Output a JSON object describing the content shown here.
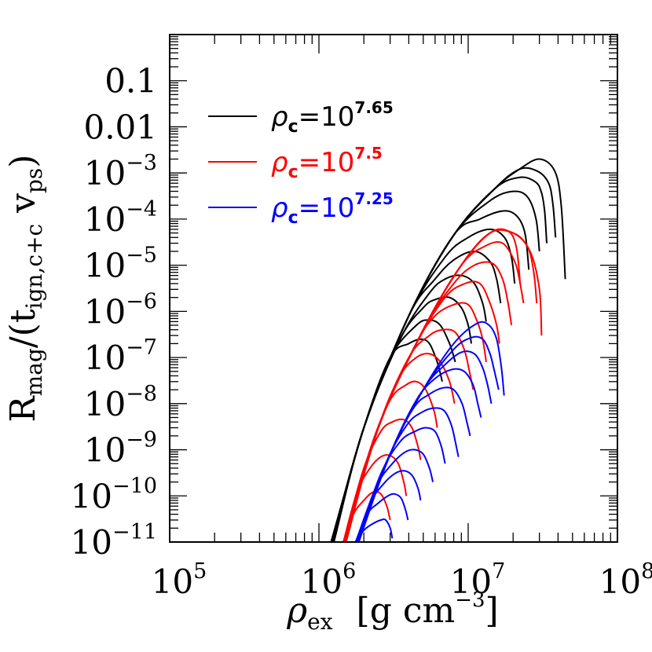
{
  "chart_data": {
    "type": "line",
    "x_scale": "log",
    "y_scale": "log",
    "xlim": [
      100000,
      100000000
    ],
    "ylim": [
      1e-11,
      1
    ],
    "x_tick_labels": [
      {
        "value": 100000,
        "base": "10",
        "exp": "5"
      },
      {
        "value": 1000000,
        "base": "10",
        "exp": "6"
      },
      {
        "value": 10000000,
        "base": "10",
        "exp": "7"
      },
      {
        "value": 100000000,
        "base": "10",
        "exp": "8"
      }
    ],
    "y_tick_labels": [
      {
        "value": 0.1,
        "text": "0.1"
      },
      {
        "value": 0.01,
        "text": "0.01"
      },
      {
        "value": 0.001,
        "base": "10",
        "exp": "−3"
      },
      {
        "value": 0.0001,
        "base": "10",
        "exp": "−4"
      },
      {
        "value": 1e-05,
        "base": "10",
        "exp": "−5"
      },
      {
        "value": 1e-06,
        "base": "10",
        "exp": "−6"
      },
      {
        "value": 1e-07,
        "base": "10",
        "exp": "−7"
      },
      {
        "value": 1e-08,
        "base": "10",
        "exp": "−8"
      },
      {
        "value": 1e-09,
        "base": "10",
        "exp": "−9"
      },
      {
        "value": 1e-10,
        "base": "10",
        "exp": "−10"
      },
      {
        "value": 1e-11,
        "base": "10",
        "exp": "−11"
      }
    ],
    "xlabel": {
      "symbol": "ρ",
      "sub": "ex",
      "unit_open": "[g cm",
      "unit_exp": "−3",
      "unit_close": "]"
    },
    "ylabel": {
      "main": "R",
      "sub1": "mag",
      "mid": "/(t",
      "sub2": "ign,c+c",
      "gap": " v",
      "sub3": "ps",
      "close": ")"
    },
    "legend": {
      "position": "top-left",
      "entries": [
        {
          "symbol": "ρ",
          "sub": "c",
          "eq": "=10",
          "exp": "7.65",
          "color": "#000000"
        },
        {
          "symbol": "ρ",
          "sub": "c",
          "eq": "=10",
          "exp": "7.5",
          "color": "#ff0000"
        },
        {
          "symbol": "ρ",
          "sub": "c",
          "eq": "=10",
          "exp": "7.25",
          "color": "#0000ff"
        }
      ]
    },
    "series": [
      {
        "color": "#000000",
        "curves": [
          {
            "x": [
              1240000,
              2000000,
              4000000,
              8000000,
              15000000,
              22000000,
              28000000,
              30800000,
              32500000,
              33600000
            ],
            "y": [
              1e-11,
              3e-09,
              8e-07,
              4.5e-05,
              0.00045,
              0.0008,
              0.00065,
              0.0004,
              0.00015,
              3e-05
            ]
          },
          {
            "x": [
              1250000,
              2000000,
              4000000,
              8000000,
              15000000,
              22000000,
              29000000,
              34600000,
              37000000,
              38500000
            ],
            "y": [
              1e-11,
              3e-09,
              8e-07,
              4.5e-05,
              0.00045,
              0.0012,
              0.0011,
              0.0006,
              0.0002,
              4e-05
            ]
          },
          {
            "x": [
              1260000,
              2000000,
              4000000,
              8000000,
              15000000,
              22000000,
              30000000,
              38000000,
              42000000,
              44700000
            ],
            "y": [
              1e-11,
              3e-09,
              8e-07,
              4.5e-05,
              0.00045,
              0.0012,
              0.002,
              0.0011,
              0.0002,
              5e-06
            ]
          },
          {
            "x": [
              1245000,
              2000000,
              4000000,
              8000000,
              14000000,
              20000000,
              25000000,
              28500000,
              30000000
            ],
            "y": [
              1e-11,
              3e-09,
              8e-07,
              4.5e-05,
              0.00025,
              0.0004,
              0.0003,
              0.0001,
              2e-05
            ]
          },
          {
            "x": [
              1235000,
              2000000,
              4000000,
              8000000,
              12000000,
              17000000,
              21000000,
              24000000,
              25500000
            ],
            "y": [
              1e-11,
              3e-09,
              8e-07,
              4.5e-05,
              0.0001,
              0.00015,
              0.00012,
              5e-05,
              8e-06
            ]
          },
          {
            "x": [
              1230000,
              2000000,
              4000000,
              7000000,
              10000000,
              14000000,
              17500000,
              19500000,
              20500000
            ],
            "y": [
              1e-11,
              3e-09,
              8e-07,
              1.5e-05,
              4e-05,
              6e-05,
              4e-05,
              1.5e-05,
              4e-06
            ]
          },
          {
            "x": [
              1225000,
              2000000,
              4000000,
              6000000,
              8000000,
              11000000,
              14000000,
              15500000,
              16500000
            ],
            "y": [
              1e-11,
              3e-09,
              8e-07,
              5e-06,
              1.3e-05,
              2e-05,
              1.2e-05,
              5e-06,
              1.5e-06
            ]
          },
          {
            "x": [
              1220000,
              2000000,
              3500000,
              5500000,
              7000000,
              9000000,
              11000000,
              12500000,
              13200000
            ],
            "y": [
              1e-11,
              3e-09,
              2.5e-07,
              2.5e-06,
              5e-06,
              6e-06,
              4e-06,
              1.5e-06,
              6e-07
            ]
          },
          {
            "x": [
              1215000,
              2000000,
              3500000,
              5000000,
              6000000,
              7500000,
              9000000,
              10000000,
              10500000
            ],
            "y": [
              1e-11,
              3e-09,
              2.5e-07,
              1.2e-06,
              1.8e-06,
              2e-06,
              1.2e-06,
              5e-07,
              2e-07
            ]
          },
          {
            "x": [
              1210000,
              2000000,
              3000000,
              4500000,
              5500000,
              6500000,
              7500000,
              8200000
            ],
            "y": [
              1e-11,
              3e-09,
              1e-07,
              5e-07,
              6.5e-07,
              5e-07,
              2e-07,
              8e-08
            ]
          },
          {
            "x": [
              1205000,
              2000000,
              3000000,
              4000000,
              4800000,
              5500000,
              6200000,
              6700000
            ],
            "y": [
              1e-11,
              3e-09,
              1e-07,
              2e-07,
              2.5e-07,
              2e-07,
              8e-08,
              3e-08
            ]
          }
        ]
      },
      {
        "color": "#ff0000",
        "curves": [
          {
            "x": [
              1500000,
              2500000,
              5000000,
              9000000,
              14000000,
              18500000,
              21000000,
              22300000
            ],
            "y": [
              1e-11,
              3e-09,
              4e-07,
              1e-05,
              5e-05,
              5.5e-05,
              2.5e-05,
              4e-06
            ]
          },
          {
            "x": [
              1510000,
              2500000,
              5000000,
              9000000,
              14000000,
              20000000,
              25000000,
              27500000,
              28800000
            ],
            "y": [
              1e-11,
              3e-09,
              4e-07,
              1e-05,
              5e-05,
              5e-05,
              2.5e-05,
              7e-06,
              1.5e-06
            ]
          },
          {
            "x": [
              1520000,
              2500000,
              5000000,
              9000000,
              14000000,
              20000000,
              26000000,
              30000000,
              31000000
            ],
            "y": [
              1e-11,
              3e-09,
              4e-07,
              1e-05,
              5e-05,
              5e-05,
              2e-05,
              3e-06,
              3e-07
            ]
          },
          {
            "x": [
              1495000,
              2500000,
              5000000,
              9000000,
              13000000,
              17000000,
              20500000,
              22000000,
              23500000
            ],
            "y": [
              1e-11,
              3e-09,
              4e-07,
              1e-05,
              2.6e-05,
              3e-05,
              1.2e-05,
              5e-06,
              1.5e-06
            ]
          },
          {
            "x": [
              1490000,
              2500000,
              5000000,
              8000000,
              11000000,
              14500000,
              17000000,
              18500000,
              19500000
            ],
            "y": [
              1e-11,
              3e-09,
              4e-07,
              4e-06,
              1e-05,
              1.1e-05,
              5e-06,
              1.5e-06,
              5e-07
            ]
          },
          {
            "x": [
              1485000,
              2500000,
              4500000,
              7000000,
              9500000,
              12000000,
              14000000,
              15500000,
              16200000
            ],
            "y": [
              1e-11,
              3e-09,
              2e-07,
              2e-06,
              4e-06,
              4e-06,
              1.5e-06,
              5e-07,
              2e-07
            ]
          },
          {
            "x": [
              1480000,
              2500000,
              4500000,
              6000000,
              8000000,
              10000000,
              11500000,
              12500000,
              13200000
            ],
            "y": [
              1e-11,
              3e-09,
              2e-07,
              8e-07,
              1.4e-06,
              1.4e-06,
              6e-07,
              2.5e-07,
              8e-08
            ]
          },
          {
            "x": [
              1475000,
              2500000,
              4000000,
              5500000,
              6800000,
              8200000,
              9400000,
              10200000,
              10800000
            ],
            "y": [
              1e-11,
              3e-09,
              1e-07,
              3e-07,
              4e-07,
              3.5e-07,
              1.5e-07,
              5e-08,
              2e-08
            ]
          },
          {
            "x": [
              1470000,
              2500000,
              3500000,
              4500000,
              5500000,
              6500000,
              7500000,
              8100000
            ],
            "y": [
              1e-11,
              3e-09,
              4e-08,
              1e-07,
              1.2e-07,
              8e-08,
              3e-08,
              1e-08
            ]
          },
          {
            "x": [
              1465000,
              2200000,
              3000000,
              3800000,
              4500000,
              5200000,
              5900000,
              6200000
            ],
            "y": [
              1e-11,
              1e-09,
              1.2e-08,
              2.5e-08,
              3e-08,
              2e-08,
              7e-09,
              3e-09
            ]
          },
          {
            "x": [
              1460000,
              2000000,
              2600000,
              3100000,
              3700000,
              4200000,
              4600000,
              4800000
            ],
            "y": [
              1e-11,
              4e-10,
              2.5e-09,
              4e-09,
              4.5e-09,
              3e-09,
              1.2e-09,
              6e-10
            ]
          },
          {
            "x": [
              1460000,
              1800000,
              2200000,
              2600000,
              3000000,
              3400000,
              3700000,
              3850000
            ],
            "y": [
              1e-11,
              1.2e-10,
              4e-10,
              7e-10,
              7.5e-10,
              5e-10,
              2e-10,
              1e-10
            ]
          },
          {
            "x": [
              1460000,
              1700000,
              2000000,
              2300000,
              2600000,
              2850000,
              3000000
            ],
            "y": [
              1e-11,
              4e-11,
              8e-11,
              1.2e-10,
              1.1e-10,
              6e-11,
              3e-11
            ]
          }
        ]
      },
      {
        "color": "#0000ff",
        "curves": [
          {
            "x": [
              1850000,
              3000000,
              5000000,
              8000000,
              11500000,
              13800000,
              15500000,
              16700000,
              17400000
            ],
            "y": [
              1e-11,
              8e-10,
              2e-08,
              2e-07,
              5.5e-07,
              5e-07,
              2.5e-07,
              6e-08,
              1.5e-08
            ]
          },
          {
            "x": [
              1840000,
              3000000,
              5000000,
              8000000,
              10500000,
              12500000,
              14000000,
              15000000,
              16000000
            ],
            "y": [
              1e-11,
              8e-10,
              2e-08,
              1.5e-07,
              2.7e-07,
              2.5e-07,
              1.2e-07,
              5e-08,
              2e-08
            ]
          },
          {
            "x": [
              1830000,
              3000000,
              5000000,
              7000000,
              9000000,
              11000000,
              12500000,
              13500000,
              14300000
            ],
            "y": [
              1e-11,
              8e-10,
              2e-08,
              7e-08,
              1.3e-07,
              1.2e-07,
              6e-08,
              2.5e-08,
              1e-08
            ]
          },
          {
            "x": [
              1820000,
              3000000,
              4500000,
              6000000,
              7800000,
              9400000,
              10800000,
              11600000,
              12200000
            ],
            "y": [
              1e-11,
              8e-10,
              1.2e-08,
              3.5e-08,
              5.5e-08,
              5e-08,
              2.5e-08,
              1e-08,
              5e-09
            ]
          },
          {
            "x": [
              1810000,
              3000000,
              4300000,
              5500000,
              6800000,
              8000000,
              9100000,
              9800000,
              10300000
            ],
            "y": [
              1e-11,
              8e-10,
              8e-09,
              1.6e-08,
              2.2e-08,
              2e-08,
              1e-08,
              4e-09,
              2e-09
            ]
          },
          {
            "x": [
              1800000,
              2800000,
              3900000,
              4900000,
              5900000,
              6900000,
              7700000,
              8200000,
              8600000
            ],
            "y": [
              1e-11,
              5e-10,
              3.5e-09,
              6.5e-09,
              8e-09,
              7e-09,
              3.5e-09,
              1.5e-09,
              7e-10
            ]
          },
          {
            "x": [
              1790000,
              2600000,
              3500000,
              4400000,
              5200000,
              6000000,
              6600000,
              7000000
            ],
            "y": [
              1e-11,
              3e-10,
              1.5e-09,
              2.5e-09,
              3e-09,
              2.5e-09,
              1.2e-09,
              5e-10
            ]
          },
          {
            "x": [
              1780000,
              2400000,
              3100000,
              3800000,
              4400000,
              5000000,
              5500000,
              5800000
            ],
            "y": [
              1e-11,
              1.5e-10,
              5e-10,
              9e-10,
              1e-09,
              8e-10,
              4e-10,
              2e-10
            ]
          },
          {
            "x": [
              1770000,
              2200000,
              2700000,
              3200000,
              3700000,
              4200000,
              4600000,
              4800000
            ],
            "y": [
              1e-11,
              7e-11,
              1.8e-10,
              3e-10,
              3.5e-10,
              2.8e-10,
              1.5e-10,
              8e-11
            ]
          },
          {
            "x": [
              1760000,
              2100000,
              2500000,
              2900000,
              3200000,
              3550000,
              3800000,
              3950000
            ],
            "y": [
              1e-11,
              4e-11,
              7e-11,
              1e-10,
              1.1e-10,
              9e-11,
              5e-11,
              3e-11
            ]
          },
          {
            "x": [
              1755000,
              2000000,
              2300000,
              2600000,
              2800000,
              3000000,
              3100000
            ],
            "y": [
              1e-11,
              1.8e-11,
              2.5e-11,
              3e-11,
              3e-11,
              2e-11,
              1.2e-11
            ]
          }
        ]
      }
    ]
  }
}
